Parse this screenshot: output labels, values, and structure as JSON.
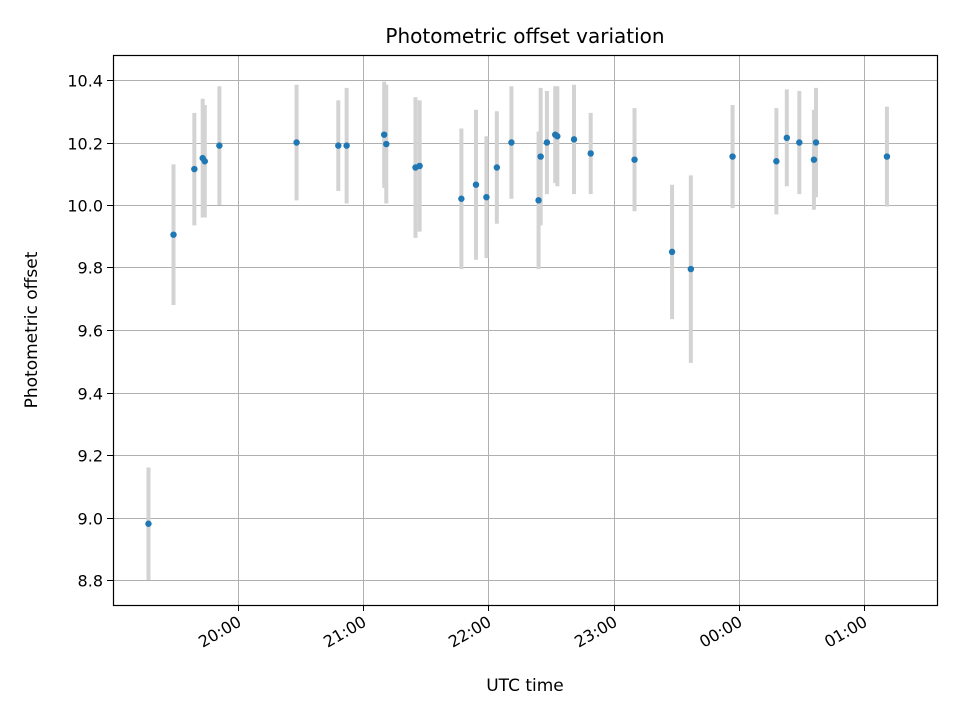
{
  "chart_data": {
    "type": "scatter",
    "title": "Photometric offset variation",
    "xlabel": "UTC time",
    "ylabel": "Photometric offset",
    "grid": true,
    "x_axis": {
      "unit": "UTC time (HH:MM)",
      "range": [
        "19:00",
        "01:35"
      ],
      "ticks": [
        "20:00",
        "21:00",
        "22:00",
        "23:00",
        "00:00",
        "01:00"
      ]
    },
    "y_axis": {
      "range": [
        8.72,
        10.48
      ],
      "ticks": [
        8.8,
        9.0,
        9.2,
        9.4,
        9.6,
        9.8,
        10.0,
        10.2,
        10.4
      ],
      "tick_labels": [
        "8.8",
        "9.0",
        "9.2",
        "9.4",
        "9.6",
        "9.8",
        "10.0",
        "10.2",
        "10.4"
      ]
    },
    "colors": {
      "points": "#1f77b4",
      "error_bars": "#d3d3d3",
      "grid": "#b0b0b0"
    },
    "points": [
      {
        "x": "19:17",
        "y": 8.98,
        "err": 0.18
      },
      {
        "x": "19:29",
        "y": 9.905,
        "err": 0.225
      },
      {
        "x": "19:39",
        "y": 10.115,
        "err": 0.18
      },
      {
        "x": "19:43",
        "y": 10.15,
        "err": 0.19
      },
      {
        "x": "19:44",
        "y": 10.14,
        "err": 0.18
      },
      {
        "x": "19:51",
        "y": 10.19,
        "err": 0.19
      },
      {
        "x": "20:28",
        "y": 10.2,
        "err": 0.185
      },
      {
        "x": "20:48",
        "y": 10.19,
        "err": 0.145
      },
      {
        "x": "20:52",
        "y": 10.19,
        "err": 0.185
      },
      {
        "x": "21:10",
        "y": 10.225,
        "err": 0.17
      },
      {
        "x": "21:11",
        "y": 10.195,
        "err": 0.19
      },
      {
        "x": "21:25",
        "y": 10.12,
        "err": 0.225
      },
      {
        "x": "21:27",
        "y": 10.125,
        "err": 0.21
      },
      {
        "x": "21:47",
        "y": 10.02,
        "err": 0.225
      },
      {
        "x": "21:54",
        "y": 10.065,
        "err": 0.24
      },
      {
        "x": "21:59",
        "y": 10.025,
        "err": 0.195
      },
      {
        "x": "22:04",
        "y": 10.12,
        "err": 0.18
      },
      {
        "x": "22:11",
        "y": 10.2,
        "err": 0.18
      },
      {
        "x": "22:24",
        "y": 10.015,
        "err": 0.22
      },
      {
        "x": "22:25",
        "y": 10.155,
        "err": 0.22
      },
      {
        "x": "22:28",
        "y": 10.2,
        "err": 0.165
      },
      {
        "x": "22:32",
        "y": 10.225,
        "err": 0.155
      },
      {
        "x": "22:33",
        "y": 10.22,
        "err": 0.16
      },
      {
        "x": "22:41",
        "y": 10.21,
        "err": 0.175
      },
      {
        "x": "22:49",
        "y": 10.165,
        "err": 0.13
      },
      {
        "x": "23:10",
        "y": 10.145,
        "err": 0.165
      },
      {
        "x": "23:28",
        "y": 9.85,
        "err": 0.215
      },
      {
        "x": "23:37",
        "y": 9.795,
        "err": 0.3
      },
      {
        "x": "23:57",
        "y": 10.155,
        "err": 0.165
      },
      {
        "x": "00:18",
        "y": 10.14,
        "err": 0.17
      },
      {
        "x": "00:23",
        "y": 10.215,
        "err": 0.155
      },
      {
        "x": "00:29",
        "y": 10.2,
        "err": 0.165
      },
      {
        "x": "00:36",
        "y": 10.145,
        "err": 0.16
      },
      {
        "x": "00:37",
        "y": 10.2,
        "err": 0.175
      },
      {
        "x": "01:11",
        "y": 10.155,
        "err": 0.16
      }
    ]
  }
}
